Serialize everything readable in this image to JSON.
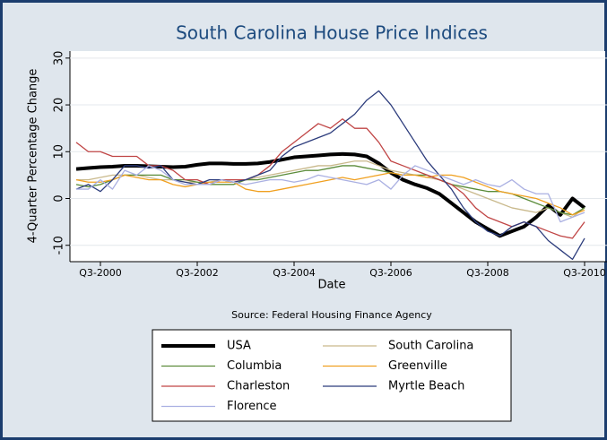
{
  "chart_data": {
    "type": "line",
    "title": "South Carolina House Price Indices",
    "x_label": "Date",
    "y_label": "4-Quarter Percentage Change",
    "note": "Source: Federal Housing Finance Agency",
    "x": [
      "Q1-2000",
      "Q2-2000",
      "Q3-2000",
      "Q4-2000",
      "Q1-2001",
      "Q2-2001",
      "Q3-2001",
      "Q4-2001",
      "Q1-2002",
      "Q2-2002",
      "Q3-2002",
      "Q4-2002",
      "Q1-2003",
      "Q2-2003",
      "Q3-2003",
      "Q4-2003",
      "Q1-2004",
      "Q2-2004",
      "Q3-2004",
      "Q4-2004",
      "Q1-2005",
      "Q2-2005",
      "Q3-2005",
      "Q4-2005",
      "Q1-2006",
      "Q2-2006",
      "Q3-2006",
      "Q4-2006",
      "Q1-2007",
      "Q2-2007",
      "Q3-2007",
      "Q4-2007",
      "Q1-2008",
      "Q2-2008",
      "Q3-2008",
      "Q4-2008",
      "Q1-2009",
      "Q2-2009",
      "Q3-2009",
      "Q4-2009",
      "Q1-2010",
      "Q2-2010",
      "Q3-2010"
    ],
    "xticks": [
      "Q3-2000",
      "Q3-2002",
      "Q3-2004",
      "Q3-2006",
      "Q3-2008",
      "Q3-2010"
    ],
    "ylim": [
      -13.5,
      31.5
    ],
    "yticks": [
      -10,
      0,
      10,
      20,
      30
    ],
    "grid": true,
    "series": [
      {
        "name": "USA",
        "color": "#000000",
        "width": 4,
        "values": [
          6.3,
          6.5,
          6.7,
          6.8,
          7.0,
          7.0,
          6.9,
          6.8,
          6.7,
          6.8,
          7.2,
          7.5,
          7.5,
          7.4,
          7.4,
          7.5,
          7.8,
          8.3,
          8.8,
          9.0,
          9.2,
          9.4,
          9.5,
          9.4,
          9.0,
          7.5,
          5.5,
          4.0,
          3.0,
          2.2,
          1.0,
          -1.0,
          -3.0,
          -5.0,
          -6.5,
          -8.0,
          -7.0,
          -6.0,
          -4.0,
          -1.5,
          -3.5,
          0,
          -2
        ]
      },
      {
        "name": "South Carolina",
        "color": "#c9b98c",
        "width": 1.3,
        "values": [
          4,
          4,
          4.5,
          5,
          5,
          5,
          4.5,
          4,
          4,
          3.5,
          3.5,
          3.5,
          4,
          4,
          4,
          4.5,
          5,
          5.5,
          6,
          6.5,
          7,
          7,
          7.5,
          8,
          8,
          7,
          6,
          5.5,
          5,
          4.5,
          4,
          3,
          2,
          1,
          0,
          -1,
          -2,
          -2.5,
          -3,
          -2,
          -3,
          -4,
          -2
        ]
      },
      {
        "name": "Columbia",
        "color": "#5b8c3a",
        "width": 1.3,
        "values": [
          3,
          2.5,
          3,
          4,
          5,
          5,
          5,
          5,
          4,
          4,
          3.5,
          3,
          3,
          3,
          4,
          4,
          4.5,
          5,
          5.5,
          6,
          6,
          6.5,
          7,
          7,
          6.5,
          6,
          5.5,
          5,
          5,
          5,
          4,
          3,
          2.5,
          2,
          1.5,
          1.5,
          1,
          0,
          -1,
          -2,
          -3,
          -3.5,
          -2
        ]
      },
      {
        "name": "Greenville",
        "color": "#f0a020",
        "width": 1.3,
        "values": [
          4,
          3.5,
          3.5,
          4,
          5,
          4.5,
          4,
          4,
          3,
          2.5,
          3,
          3.5,
          3.5,
          3.5,
          2,
          1.5,
          1.5,
          2,
          2.5,
          3,
          3.5,
          4,
          4.5,
          4,
          4.5,
          5,
          5.5,
          5,
          5,
          4.5,
          5,
          5,
          4.5,
          3.5,
          2.5,
          1.5,
          1,
          0.5,
          0,
          -1,
          -2,
          -3.5,
          -2.5
        ]
      },
      {
        "name": "Charleston",
        "color": "#c04545",
        "width": 1.3,
        "values": [
          12,
          10,
          10,
          9,
          9,
          9,
          7,
          7,
          6,
          4,
          4,
          3,
          4,
          4,
          4,
          5,
          7,
          10,
          12,
          14,
          16,
          15,
          17,
          15,
          15,
          12,
          8,
          7,
          6,
          5,
          4,
          3,
          1,
          -2,
          -4,
          -5,
          -6,
          -5,
          -6,
          -7,
          -8,
          -8.5,
          -5
        ]
      },
      {
        "name": "Myrtle Beach",
        "color": "#2c3c7c",
        "width": 1.3,
        "values": [
          2,
          3,
          1.5,
          4,
          7,
          7,
          6.5,
          7,
          4,
          3.5,
          3,
          4,
          4,
          3.5,
          4,
          5,
          6,
          9,
          11,
          12,
          13,
          14,
          16,
          18,
          21,
          23,
          20,
          16,
          12,
          8,
          5,
          2,
          -2,
          -5,
          -7,
          -8,
          -6,
          -5,
          -6,
          -9,
          -11,
          -13,
          -8.5
        ]
      },
      {
        "name": "Florence",
        "color": "#aab0e2",
        "width": 1.3,
        "values": [
          2,
          2,
          4,
          2,
          6,
          5,
          7,
          6,
          4,
          3,
          3,
          3,
          4,
          3.5,
          3,
          3.5,
          4,
          4,
          3.5,
          4,
          5,
          4.5,
          4,
          3.5,
          3,
          4,
          2,
          5,
          7,
          6,
          5,
          4,
          3,
          4,
          3,
          2.5,
          4,
          2,
          1,
          1,
          -5,
          -4,
          -3
        ]
      }
    ]
  }
}
